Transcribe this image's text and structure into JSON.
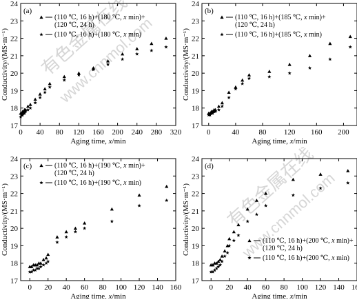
{
  "watermark": {
    "cn": "有色金属在线",
    "url": "www.cnnmol.com"
  },
  "chart_data": [
    {
      "type": "scatter",
      "panel_label": "(a)",
      "xlabel": "Aging time, x/min",
      "ylabel": "Conductivity/(MS·m⁻¹)",
      "xlim": [
        0,
        320
      ],
      "ylim": [
        17,
        24
      ],
      "xticks": [
        0,
        40,
        80,
        120,
        160,
        200,
        240,
        280,
        320
      ],
      "yticks": [
        17,
        18,
        19,
        20,
        21,
        22,
        23,
        24
      ],
      "legend_position": "top-left",
      "series": [
        {
          "name": "(110 ℃, 16 h)+(180 ℃, x min)+\n(120 ℃, 24 h)",
          "marker": "triangle",
          "x": [
            0,
            2,
            4,
            6,
            8,
            10,
            15,
            20,
            30,
            40,
            50,
            60,
            90,
            120,
            150,
            180,
            210,
            240,
            270,
            300
          ],
          "y": [
            17.7,
            17.7,
            17.8,
            17.8,
            17.9,
            17.9,
            18.1,
            18.2,
            18.5,
            18.8,
            19.1,
            19.4,
            19.8,
            20.0,
            20.3,
            20.7,
            21.1,
            21.4,
            21.7,
            22.0
          ]
        },
        {
          "name": "(110 ℃, 16 h)+(180 ℃, x min)",
          "marker": "star",
          "x": [
            0,
            2,
            4,
            6,
            8,
            10,
            15,
            20,
            30,
            40,
            50,
            60,
            90,
            120,
            150,
            180,
            210,
            240,
            270,
            300
          ],
          "y": [
            17.5,
            17.6,
            17.6,
            17.7,
            17.7,
            17.8,
            17.9,
            18.0,
            18.3,
            18.6,
            18.9,
            19.2,
            19.6,
            19.9,
            20.2,
            20.5,
            20.8,
            21.1,
            21.3,
            21.5
          ]
        }
      ]
    },
    {
      "type": "scatter",
      "panel_label": "(b)",
      "xlabel": "Aging time, x/min",
      "ylabel": "Conductivity/(MS·m⁻¹)",
      "xlim": [
        -10,
        220
      ],
      "ylim": [
        17,
        24
      ],
      "xticks": [
        0,
        40,
        80,
        120,
        160,
        200
      ],
      "yticks": [
        17,
        18,
        19,
        20,
        21,
        22,
        23,
        24
      ],
      "legend_position": "top-left",
      "series": [
        {
          "name": "(110 ℃, 16 h)+(185 ℃, x min)+\n(120 ℃, 24 h)",
          "marker": "triangle",
          "x": [
            0,
            2,
            4,
            6,
            8,
            10,
            15,
            20,
            30,
            40,
            50,
            60,
            90,
            120,
            150,
            180,
            210
          ],
          "y": [
            17.7,
            17.7,
            17.8,
            17.8,
            17.9,
            17.9,
            18.1,
            18.3,
            18.9,
            19.2,
            19.6,
            19.9,
            20.1,
            20.5,
            21.0,
            21.7,
            22.1
          ]
        },
        {
          "name": "(110 ℃, 16 h)+(185 ℃, x min)",
          "marker": "star",
          "x": [
            0,
            2,
            4,
            6,
            8,
            10,
            15,
            20,
            30,
            40,
            50,
            60,
            90,
            120,
            150,
            180,
            210
          ],
          "y": [
            17.6,
            17.6,
            17.7,
            17.7,
            17.8,
            17.8,
            17.9,
            18.1,
            18.6,
            19.1,
            19.4,
            19.7,
            19.8,
            20.0,
            20.3,
            20.8,
            21.5
          ]
        }
      ]
    },
    {
      "type": "scatter",
      "panel_label": "(c)",
      "xlabel": "Aging time, x/min",
      "ylabel": "Conductivity/(MS·m⁻¹)",
      "xlim": [
        -10,
        160
      ],
      "ylim": [
        17,
        24
      ],
      "xticks": [
        0,
        20,
        40,
        60,
        80,
        100,
        120,
        140,
        160
      ],
      "yticks": [
        17,
        18,
        19,
        20,
        21,
        22,
        23,
        24
      ],
      "legend_position": "top-left",
      "series": [
        {
          "name": "(110 ℃, 16 h)+(190 ℃, x min)+\n(120 ℃, 24 h)",
          "marker": "triangle",
          "x": [
            0,
            2,
            4,
            6,
            8,
            10,
            12,
            15,
            18,
            20,
            30,
            40,
            50,
            60,
            90,
            120,
            150
          ],
          "y": [
            17.8,
            17.8,
            17.9,
            17.9,
            17.9,
            18.0,
            18.0,
            18.2,
            18.3,
            18.5,
            19.5,
            19.8,
            20.0,
            20.3,
            21.1,
            21.9,
            22.4
          ]
        },
        {
          "name": "(110 ℃, 16 h)+(190 ℃, x min)",
          "marker": "star",
          "x": [
            0,
            2,
            4,
            6,
            8,
            10,
            12,
            15,
            18,
            20,
            30,
            40,
            50,
            60,
            90,
            120,
            150
          ],
          "y": [
            17.5,
            17.5,
            17.6,
            17.6,
            17.7,
            17.7,
            17.8,
            17.9,
            18.0,
            18.1,
            19.2,
            19.5,
            19.8,
            20.0,
            20.4,
            21.3,
            21.6
          ]
        }
      ]
    },
    {
      "type": "scatter",
      "panel_label": "(d)",
      "xlabel": "Aging time, x/min",
      "ylabel": "Conductivity/(MS·m⁻¹)",
      "xlim": [
        -10,
        160
      ],
      "ylim": [
        17,
        24
      ],
      "xticks": [
        0,
        20,
        40,
        60,
        80,
        100,
        120,
        140,
        160
      ],
      "yticks": [
        17,
        18,
        19,
        20,
        21,
        22,
        23,
        24
      ],
      "legend_position": "bottom-right",
      "series": [
        {
          "name": "(110 ℃, 16 h)+(200 ℃, x min)+\n(120 ℃, 24 h)",
          "marker": "triangle",
          "x": [
            0,
            2,
            4,
            6,
            8,
            10,
            12,
            15,
            18,
            20,
            25,
            30,
            40,
            50,
            60,
            90,
            120,
            150
          ],
          "y": [
            17.9,
            17.9,
            18.0,
            18.0,
            18.1,
            18.2,
            18.4,
            18.7,
            19.0,
            19.4,
            19.8,
            20.2,
            21.1,
            21.6,
            22.0,
            22.8,
            23.1,
            23.3
          ]
        },
        {
          "name": "(110 ℃, 16 h)+(200 ℃, x min)",
          "marker": "star",
          "x": [
            0,
            2,
            4,
            6,
            8,
            10,
            12,
            15,
            18,
            20,
            25,
            30,
            40,
            50,
            60,
            90,
            120,
            150
          ],
          "y": [
            17.5,
            17.5,
            17.6,
            17.7,
            17.8,
            17.9,
            18.1,
            18.4,
            18.6,
            19.0,
            19.3,
            19.6,
            20.4,
            20.8,
            21.3,
            21.9,
            22.3,
            22.6
          ]
        }
      ]
    }
  ]
}
